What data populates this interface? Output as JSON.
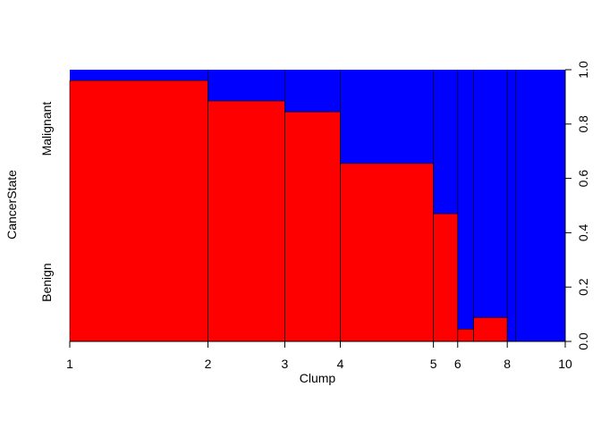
{
  "chart_data": {
    "type": "spineplot",
    "xlabel": "Clump",
    "ylabel": "CancerState",
    "x_tick_labels": [
      "1",
      "2",
      "3",
      "4",
      "5",
      "6",
      "8",
      "10"
    ],
    "y_right_ticks": [
      "0.0",
      "0.2",
      "0.4",
      "0.6",
      "0.8",
      "1.0"
    ],
    "y_right_tick_values": [
      0.0,
      0.2,
      0.4,
      0.6,
      0.8,
      1.0
    ],
    "categories": [
      "Benign",
      "Malignant"
    ],
    "colors": {
      "Benign": "#ff0000",
      "Malignant": "#0000ff"
    },
    "bins": [
      {
        "x_start": 0.0,
        "x_end": 0.279,
        "benign_fraction": 0.96
      },
      {
        "x_start": 0.279,
        "x_end": 0.434,
        "benign_fraction": 0.885
      },
      {
        "x_start": 0.434,
        "x_end": 0.546,
        "benign_fraction": 0.845
      },
      {
        "x_start": 0.546,
        "x_end": 0.734,
        "benign_fraction": 0.655
      },
      {
        "x_start": 0.734,
        "x_end": 0.783,
        "benign_fraction": 0.47
      },
      {
        "x_start": 0.783,
        "x_end": 0.815,
        "benign_fraction": 0.045
      },
      {
        "x_start": 0.815,
        "x_end": 0.883,
        "benign_fraction": 0.088
      },
      {
        "x_start": 0.883,
        "x_end": 0.9,
        "benign_fraction": 0.0
      },
      {
        "x_start": 0.9,
        "x_end": 1.0,
        "benign_fraction": 0.0
      }
    ],
    "x_tick_positions": [
      0.0,
      0.279,
      0.434,
      0.546,
      0.734,
      0.783,
      0.883,
      1.0
    ],
    "ylim": [
      0,
      1
    ]
  }
}
